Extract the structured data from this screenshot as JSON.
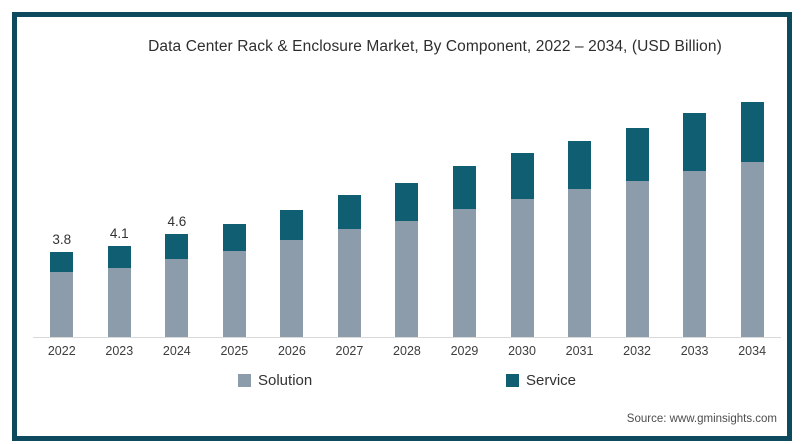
{
  "frame_border_color": "#0d4a5e",
  "source": "Source: www.gminsights.com",
  "chart_data": {
    "type": "bar",
    "stacked": true,
    "title": "Data Center Rack & Enclosure Market, By Component, 2022 – 2034, (USD Billion)",
    "unit": "USD Billion",
    "categories": [
      "2022",
      "2023",
      "2024",
      "2025",
      "2026",
      "2027",
      "2028",
      "2029",
      "2030",
      "2031",
      "2032",
      "2033",
      "2034"
    ],
    "series": [
      {
        "name": "Solution",
        "color": "#8d9cab",
        "values": [
          2.9,
          3.1,
          3.5,
          3.85,
          4.35,
          4.8,
          5.2,
          5.7,
          6.15,
          6.6,
          6.95,
          7.4,
          7.8
        ]
      },
      {
        "name": "Service",
        "color": "#0f5e71",
        "values": [
          0.9,
          1.0,
          1.1,
          1.2,
          1.35,
          1.5,
          1.7,
          1.9,
          2.05,
          2.15,
          2.35,
          2.6,
          2.7
        ]
      }
    ],
    "totals": [
      3.8,
      4.1,
      4.6,
      5.05,
      5.7,
      6.3,
      6.9,
      7.6,
      8.2,
      8.75,
      9.3,
      10.0,
      10.5
    ],
    "bar_value_labels": [
      "3.8",
      "4.1",
      "4.6",
      "",
      "",
      "",
      "",
      "",
      "",
      "",
      "",
      "",
      ""
    ],
    "legend": [
      "Solution",
      "Service"
    ],
    "legend_position": "bottom",
    "grid": false,
    "ylim": [
      0,
      11
    ],
    "axis_line_color": "#d9d9d9"
  }
}
